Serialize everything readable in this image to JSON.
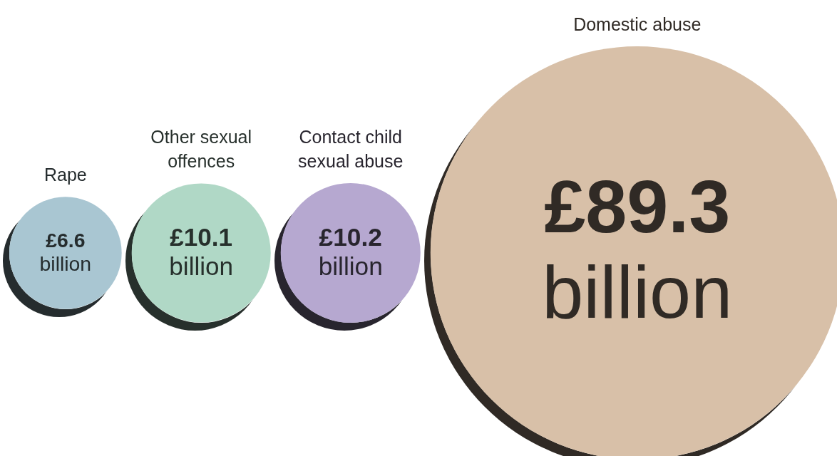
{
  "chart_data": {
    "type": "other",
    "categories": [
      "Rape",
      "Other sexual offences",
      "Contact child sexual abuse",
      "Domestic abuse"
    ],
    "values": [
      6.6,
      10.1,
      10.2,
      89.3
    ],
    "value_labels": [
      "£6.6 billion",
      "£10.1 billion",
      "£10.2 billion",
      "£89.3 billion"
    ],
    "colors": [
      "#a9c6d2",
      "#b0d8c6",
      "#b6a8d0",
      "#d8c0a8"
    ]
  }
}
